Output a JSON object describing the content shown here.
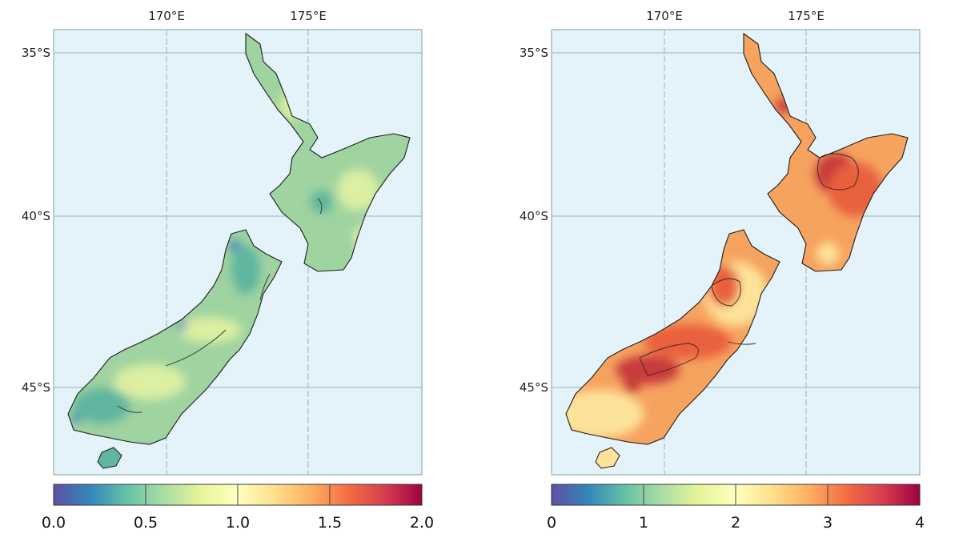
{
  "maps": [
    {
      "lon_labels": [
        "170°E",
        "175°E"
      ],
      "lat_labels": [
        "35°S",
        "40°S",
        "45°S"
      ],
      "colorbar": {
        "range": [
          0.0,
          2.0
        ],
        "ticks": [
          "0.0",
          "0.5",
          "1.0",
          "1.5",
          "2.0"
        ],
        "colormap": [
          "#5e4fa2",
          "#3288bd",
          "#66c2a5",
          "#abdda4",
          "#e6f598",
          "#ffffbf",
          "#fee08b",
          "#fdae61",
          "#f46d43",
          "#d53e4f",
          "#9e0142"
        ]
      },
      "land_colors": {
        "base": "#9fd3a0",
        "light": "#dcefa2",
        "dark": "#5fb59f",
        "deep": "#3d7fbf"
      }
    },
    {
      "lon_labels": [
        "170°E",
        "175°E"
      ],
      "lat_labels": [
        "35°S",
        "40°S",
        "45°S"
      ],
      "colorbar": {
        "range": [
          0,
          4
        ],
        "ticks": [
          "0",
          "1",
          "2",
          "3",
          "4"
        ],
        "colormap": [
          "#5e4fa2",
          "#3288bd",
          "#66c2a5",
          "#abdda4",
          "#e6f598",
          "#ffffbf",
          "#fee08b",
          "#fdae61",
          "#f46d43",
          "#d53e4f",
          "#9e0142"
        ]
      },
      "land_colors": {
        "base": "#f6a35f",
        "light": "#fde39a",
        "dark": "#e9603e",
        "deep": "#c73b3b"
      }
    }
  ],
  "ocean_color": "#e4f3f9",
  "gridline_color": "#8fb5bd"
}
